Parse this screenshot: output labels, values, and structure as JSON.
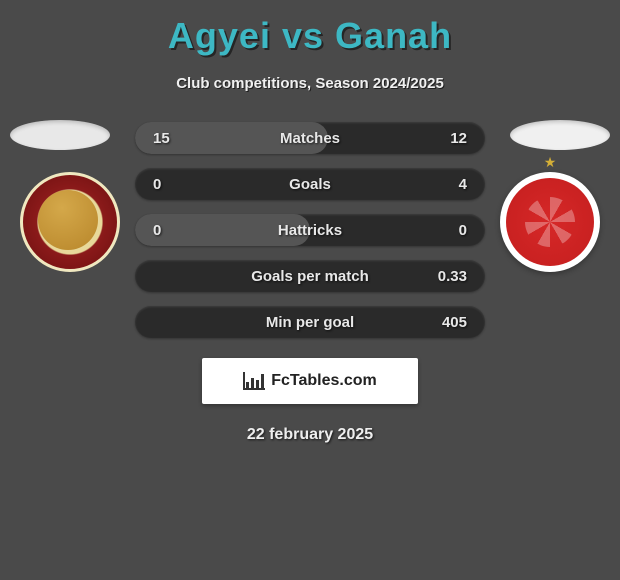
{
  "title": {
    "player1": "Agyei",
    "vs": "vs",
    "player2": "Ganah"
  },
  "subtitle": "Club competitions, Season 2024/2025",
  "rows": [
    {
      "label": "Matches",
      "left": "15",
      "right": "12",
      "left_pct": 55,
      "bg": "#2a2a2a",
      "fill": "#555"
    },
    {
      "label": "Goals",
      "left": "0",
      "right": "4",
      "left_pct": 0,
      "bg": "#2a2a2a",
      "fill": "#555"
    },
    {
      "label": "Hattricks",
      "left": "0",
      "right": "0",
      "left_pct": 50,
      "bg": "#2a2a2a",
      "fill": "#555"
    },
    {
      "label": "Goals per match",
      "left": "",
      "right": "0.33",
      "left_pct": 0,
      "bg": "#2a2a2a",
      "fill": "#555"
    },
    {
      "label": "Min per goal",
      "left": "",
      "right": "405",
      "left_pct": 0,
      "bg": "#2a2a2a",
      "fill": "#555"
    }
  ],
  "logo_text": "FcTables.com",
  "date": "22 february 2025",
  "colors": {
    "title": "#3db8c4",
    "row_bg": "#2a2a2a",
    "row_fill": "#555555",
    "badge_left_outer": "#8b1a1a",
    "badge_left_inner": "#e8d89a",
    "badge_right": "#d62828"
  }
}
